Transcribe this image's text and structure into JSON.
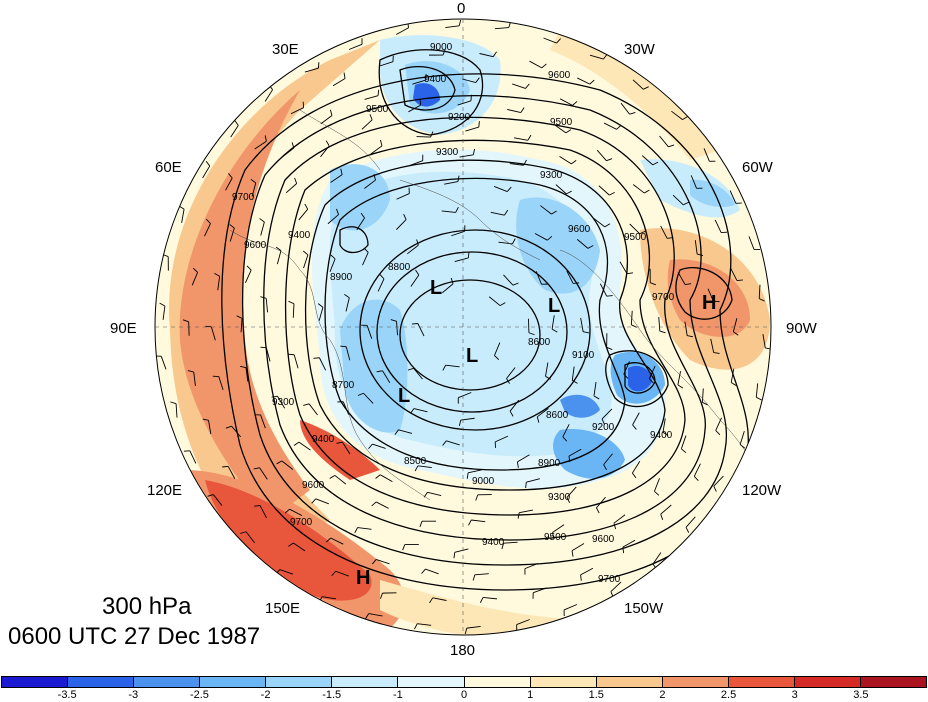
{
  "title": {
    "level": "300 hPa",
    "time": "0600 UTC 27 Dec 1987"
  },
  "longitude_labels": [
    "0",
    "30W",
    "60W",
    "90W",
    "120W",
    "150W",
    "180",
    "150E",
    "120E",
    "90E",
    "60E",
    "30E"
  ],
  "pressure_centers": [
    {
      "type": "H",
      "note": "low-latitude high over Pacific"
    },
    {
      "type": "H",
      "note": "high over North America"
    },
    {
      "type": "L"
    },
    {
      "type": "L"
    },
    {
      "type": "L"
    },
    {
      "type": "L"
    }
  ],
  "contour_labels": [
    "9000",
    "9400",
    "9200",
    "9500",
    "9600",
    "9300",
    "9500",
    "9700",
    "9600",
    "9400",
    "9300",
    "8800",
    "8900",
    "9600",
    "9500",
    "9700",
    "9300",
    "8700",
    "8600",
    "9100",
    "9200",
    "9400",
    "8900",
    "8600",
    "8500",
    "9000",
    "9400",
    "9300",
    "9500",
    "9600",
    "9700",
    "9600",
    "9700",
    "9400"
  ],
  "colorbar": {
    "tick_labels": [
      "-3.5",
      "-3",
      "-2.5",
      "-2",
      "-1.5",
      "-1",
      "0",
      "1",
      "1.5",
      "2",
      "2.5",
      "3",
      "3.5"
    ],
    "colors": [
      "#1a1ad2",
      "#2a62e8",
      "#4a92ee",
      "#6ab6f4",
      "#9ad4f8",
      "#c8ecfc",
      "#e2f6fc",
      "#fffade",
      "#fde7b6",
      "#f8c88e",
      "#f1956a",
      "#e8563c",
      "#d62a26",
      "#aa1420"
    ]
  }
}
